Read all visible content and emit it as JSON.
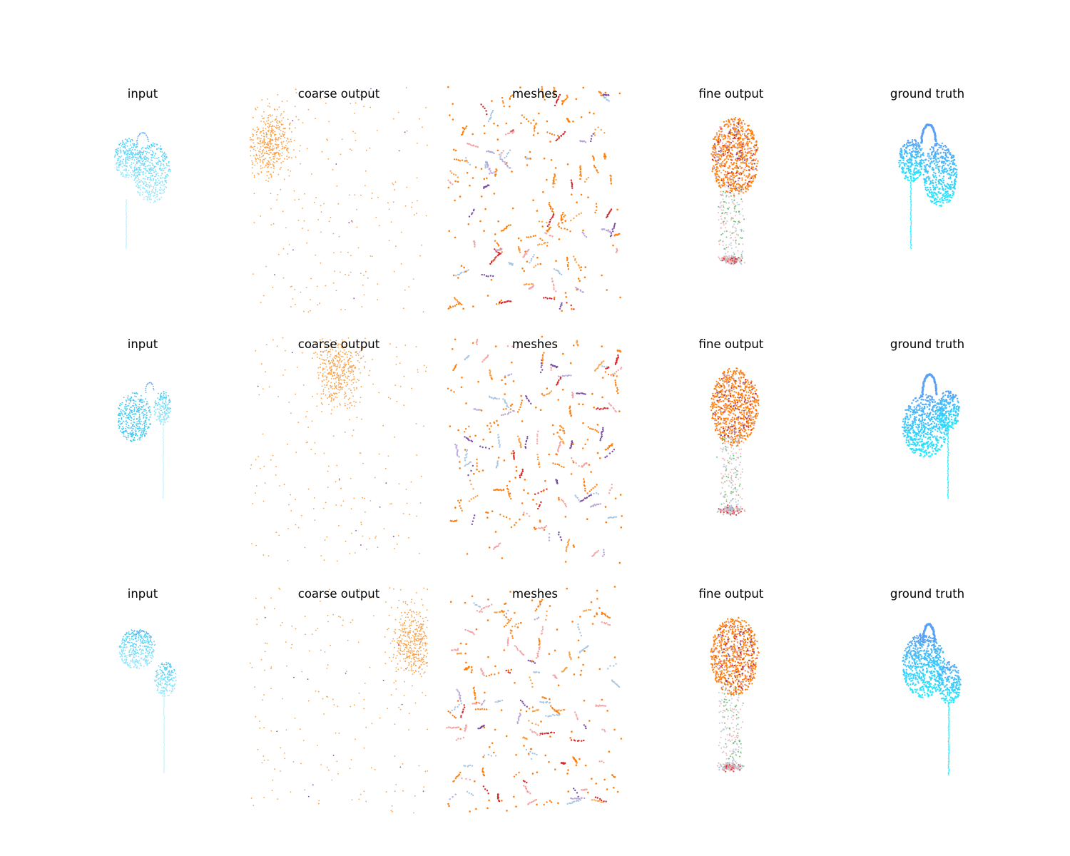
{
  "panel_titles": [
    "input",
    "coarse output",
    "meshes",
    "fine output",
    "ground truth"
  ],
  "rows": [
    {
      "titles": {
        "input": "input",
        "coarse": "coarse output",
        "meshes": "meshes",
        "fine": "fine output",
        "gt": "ground truth"
      }
    },
    {
      "titles": {
        "input": "input",
        "coarse": "coarse output",
        "meshes": "meshes",
        "fine": "fine output",
        "gt": "ground truth"
      }
    },
    {
      "titles": {
        "input": "input",
        "coarse": "coarse output",
        "meshes": "meshes",
        "fine": "fine output",
        "gt": "ground truth"
      }
    }
  ],
  "colors": {
    "input_points": "#3fc8f2",
    "input_light": "#9feaff",
    "gt_light": "#1cf0ff",
    "gt_dark": "#5aa0f5",
    "orange": "#ff7f0e",
    "light_orange": "#f7a24a",
    "pink": "#f4a6a6",
    "red": "#d62728",
    "purple": "#7b4ea3",
    "lavender": "#b9a6d9",
    "blue": "#3a7fc4",
    "light_blue": "#a9c6e4",
    "green": "#4caf50",
    "gray": "#b5bcc4"
  }
}
